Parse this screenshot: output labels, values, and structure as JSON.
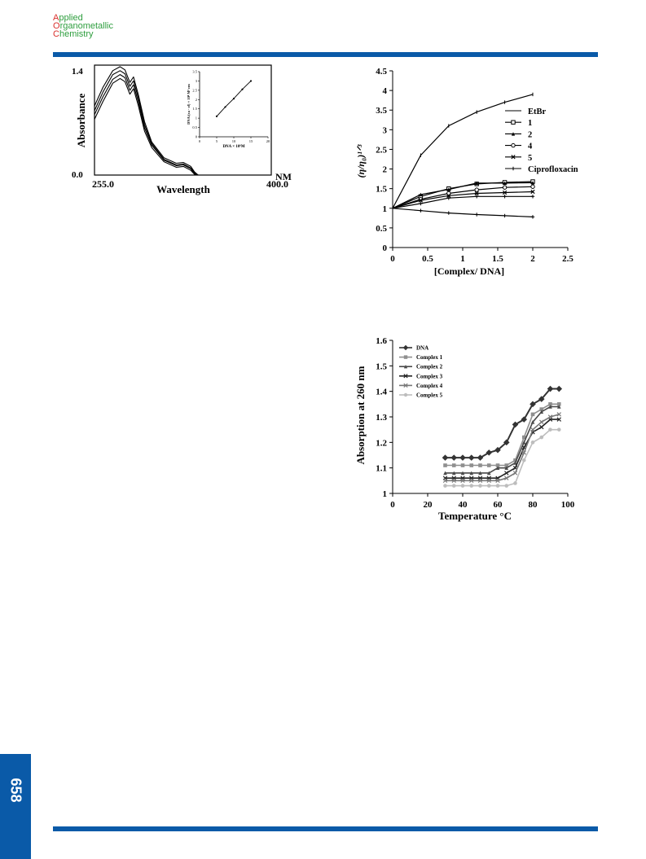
{
  "journal": {
    "line1_cap": "A",
    "line1_rest": "pplied",
    "line2_cap": "O",
    "line2_rest": "rganometallic",
    "line3_cap": "C",
    "line3_rest": "hemistry",
    "color_text": "#2e9e3e",
    "color_cap": "#d9302c"
  },
  "page_number": "658",
  "colors": {
    "bar": "#0a5aa8"
  },
  "chart_data": [
    {
      "type": "line",
      "ylabel": "Absorbance",
      "xlabel": "Wavelength",
      "x_unit": "NM",
      "x_tick_labels": [
        "255.0",
        "400.0"
      ],
      "y_tick_labels": [
        "1.4",
        "0.0"
      ],
      "xlim": [
        255,
        400
      ],
      "ylim": [
        0,
        1.4
      ],
      "series": [
        {
          "x": [
            255,
            262,
            270,
            276,
            280,
            284,
            287,
            291,
            296,
            302,
            312,
            322,
            328,
            334,
            337,
            340,
            342,
            346
          ],
          "values": [
            0.88,
            1.12,
            1.33,
            1.38,
            1.34,
            1.18,
            1.25,
            1.02,
            0.68,
            0.42,
            0.22,
            0.15,
            0.16,
            0.11,
            0.04,
            0.0,
            0.0,
            0.0
          ]
        },
        {
          "x": [
            255,
            262,
            270,
            276,
            280,
            284,
            287,
            291,
            296,
            302,
            312,
            322,
            328,
            334,
            337,
            340,
            342,
            346
          ],
          "values": [
            0.82,
            1.06,
            1.28,
            1.33,
            1.29,
            1.13,
            1.2,
            0.98,
            0.64,
            0.4,
            0.2,
            0.13,
            0.14,
            0.09,
            0.03,
            0.0,
            0.0,
            0.0
          ]
        },
        {
          "x": [
            255,
            262,
            270,
            276,
            280,
            284,
            287,
            291,
            296,
            302,
            312,
            322,
            328,
            334,
            337,
            340,
            342,
            346
          ],
          "values": [
            0.77,
            1.0,
            1.22,
            1.28,
            1.24,
            1.08,
            1.15,
            0.93,
            0.6,
            0.38,
            0.19,
            0.12,
            0.13,
            0.08,
            0.02,
            0.0,
            0.0,
            0.0
          ]
        },
        {
          "x": [
            255,
            262,
            270,
            276,
            280,
            284,
            287,
            291,
            296,
            302,
            312,
            322,
            328,
            334,
            337,
            340,
            342,
            346
          ],
          "values": [
            0.71,
            0.94,
            1.17,
            1.23,
            1.19,
            1.03,
            1.1,
            0.88,
            0.56,
            0.35,
            0.17,
            0.1,
            0.11,
            0.06,
            0.01,
            0.0,
            0.0,
            0.0
          ]
        }
      ],
      "inset": {
        "type": "line",
        "ylabel": "DNA/(εa - εf) × 10⁸ M² cm",
        "xlabel": "DNA × 10⁶M",
        "x_ticks": [
          0,
          5,
          10,
          15,
          20
        ],
        "y_ticks": [
          0,
          0.5,
          1,
          1.5,
          2,
          2.5,
          3,
          3.5
        ],
        "xlim": [
          0,
          20
        ],
        "ylim": [
          0,
          3.5
        ],
        "x": [
          5,
          7.5,
          10,
          12.5,
          15
        ],
        "values": [
          1.1,
          1.6,
          2.05,
          2.55,
          3.0
        ]
      }
    },
    {
      "type": "line",
      "ylabel": "(η/η₀)¹ᐟ³",
      "xlabel": "[Complex/ DNA]",
      "x_ticks": [
        "0",
        "0.5",
        "1",
        "1.5",
        "2",
        "2.5"
      ],
      "y_ticks": [
        "0",
        "0.5",
        "1",
        "1.5",
        "2",
        "2.5",
        "3",
        "3.5",
        "4",
        "4.5"
      ],
      "xlim": [
        0,
        2.5
      ],
      "ylim": [
        0,
        4.5
      ],
      "x": [
        0,
        0.4,
        0.8,
        1.2,
        1.6,
        2.0
      ],
      "series": [
        {
          "name": "EtBr",
          "marker": "none",
          "values": [
            1.0,
            2.35,
            3.1,
            3.45,
            3.7,
            3.9
          ]
        },
        {
          "name": "1",
          "marker": "square",
          "values": [
            1.0,
            1.3,
            1.5,
            1.62,
            1.66,
            1.68
          ]
        },
        {
          "name": "2",
          "marker": "triangle",
          "values": [
            1.0,
            1.35,
            1.48,
            1.64,
            1.64,
            1.65
          ]
        },
        {
          "name": "4",
          "marker": "circle",
          "values": [
            1.0,
            1.23,
            1.38,
            1.47,
            1.53,
            1.55
          ]
        },
        {
          "name": "5",
          "marker": "x",
          "values": [
            1.0,
            1.2,
            1.32,
            1.38,
            1.4,
            1.42
          ]
        },
        {
          "name": "Ciprofloxacin",
          "marker": "plus",
          "values": [
            1.0,
            0.94,
            0.88,
            0.84,
            0.81,
            0.78
          ]
        },
        {
          "name": "",
          "marker": "plus",
          "values": [
            1.0,
            1.12,
            1.26,
            1.3,
            1.3,
            1.3
          ]
        }
      ]
    },
    {
      "type": "line",
      "ylabel": "Absorption at 260 nm",
      "xlabel": "Temperature °C",
      "x_ticks": [
        "0",
        "20",
        "40",
        "60",
        "80",
        "100"
      ],
      "y_ticks": [
        "1",
        "1.1",
        "1.2",
        "1.3",
        "1.4",
        "1.5",
        "1.6"
      ],
      "xlim": [
        0,
        100
      ],
      "ylim": [
        1,
        1.6
      ],
      "legend_position": "top-left",
      "x": [
        30,
        35,
        40,
        45,
        50,
        55,
        60,
        65,
        70,
        75,
        80,
        85,
        90,
        95
      ],
      "series": [
        {
          "name": "DNA",
          "color": "#333333",
          "marker": "diamond",
          "values": [
            1.14,
            1.14,
            1.14,
            1.14,
            1.14,
            1.16,
            1.17,
            1.2,
            1.27,
            1.29,
            1.35,
            1.37,
            1.41,
            1.41
          ]
        },
        {
          "name": "Complex 1",
          "color": "#8f8f8f",
          "marker": "square",
          "values": [
            1.11,
            1.11,
            1.11,
            1.11,
            1.11,
            1.11,
            1.11,
            1.11,
            1.13,
            1.22,
            1.31,
            1.33,
            1.35,
            1.35
          ]
        },
        {
          "name": "Complex 2",
          "color": "#4a4a4a",
          "marker": "triangle",
          "values": [
            1.08,
            1.08,
            1.08,
            1.08,
            1.08,
            1.08,
            1.1,
            1.1,
            1.12,
            1.2,
            1.28,
            1.32,
            1.34,
            1.34
          ]
        },
        {
          "name": "Complex 3",
          "color": "#222222",
          "marker": "x",
          "values": [
            1.06,
            1.06,
            1.06,
            1.06,
            1.06,
            1.06,
            1.06,
            1.08,
            1.1,
            1.18,
            1.24,
            1.26,
            1.29,
            1.29
          ]
        },
        {
          "name": "Complex 4",
          "color": "#777777",
          "marker": "x",
          "values": [
            1.05,
            1.05,
            1.05,
            1.05,
            1.05,
            1.05,
            1.05,
            1.06,
            1.08,
            1.16,
            1.25,
            1.28,
            1.3,
            1.31
          ]
        },
        {
          "name": "Complex 5",
          "color": "#bdbdbd",
          "marker": "circle",
          "values": [
            1.03,
            1.03,
            1.03,
            1.03,
            1.03,
            1.03,
            1.03,
            1.03,
            1.04,
            1.13,
            1.2,
            1.22,
            1.25,
            1.25
          ]
        }
      ]
    }
  ]
}
